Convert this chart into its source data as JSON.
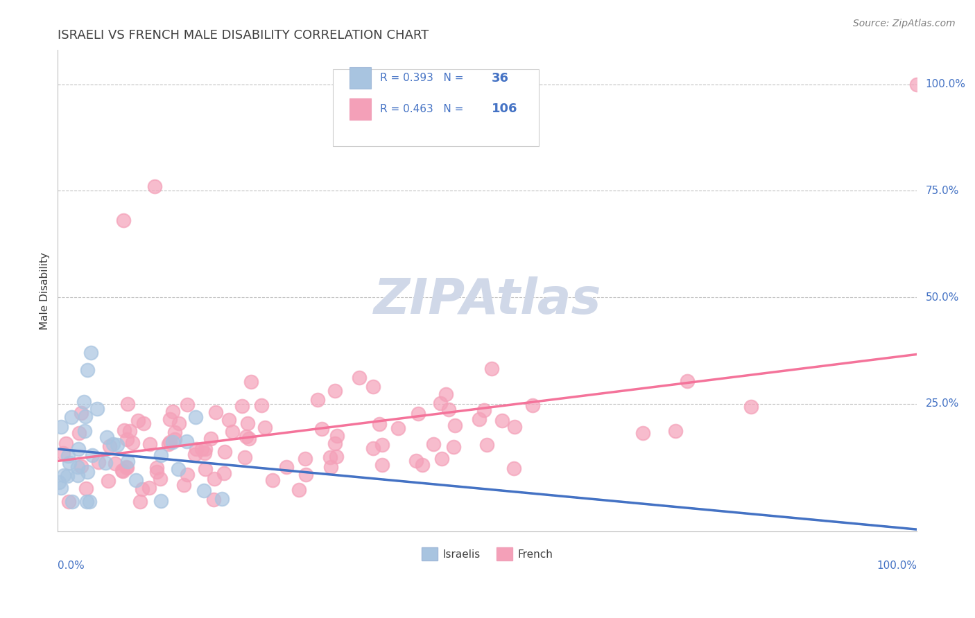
{
  "title": "ISRAELI VS FRENCH MALE DISABILITY CORRELATION CHART",
  "source": "Source: ZipAtlas.com",
  "ylabel": "Male Disability",
  "ytick_values": [
    0,
    0.25,
    0.5,
    0.75,
    1.0
  ],
  "ytick_labels": [
    "0.0%",
    "25.0%",
    "50.0%",
    "75.0%",
    "100.0%"
  ],
  "xlim": [
    0,
    1.0
  ],
  "ylim": [
    -0.05,
    1.08
  ],
  "israeli_R": 0.393,
  "israeli_N": 36,
  "french_R": 0.463,
  "french_N": 106,
  "israeli_color": "#a8c4e0",
  "french_color": "#f4a0b8",
  "israeli_line_color": "#4472c4",
  "french_line_color": "#f4739a",
  "dashed_line_color": "#a0b8d8",
  "legend_R_color": "#4472c4",
  "title_color": "#404040",
  "source_color": "#808080",
  "axis_label_color": "#4472c4",
  "grid_color": "#c0c0c0",
  "watermark_color": "#d0d8e8"
}
